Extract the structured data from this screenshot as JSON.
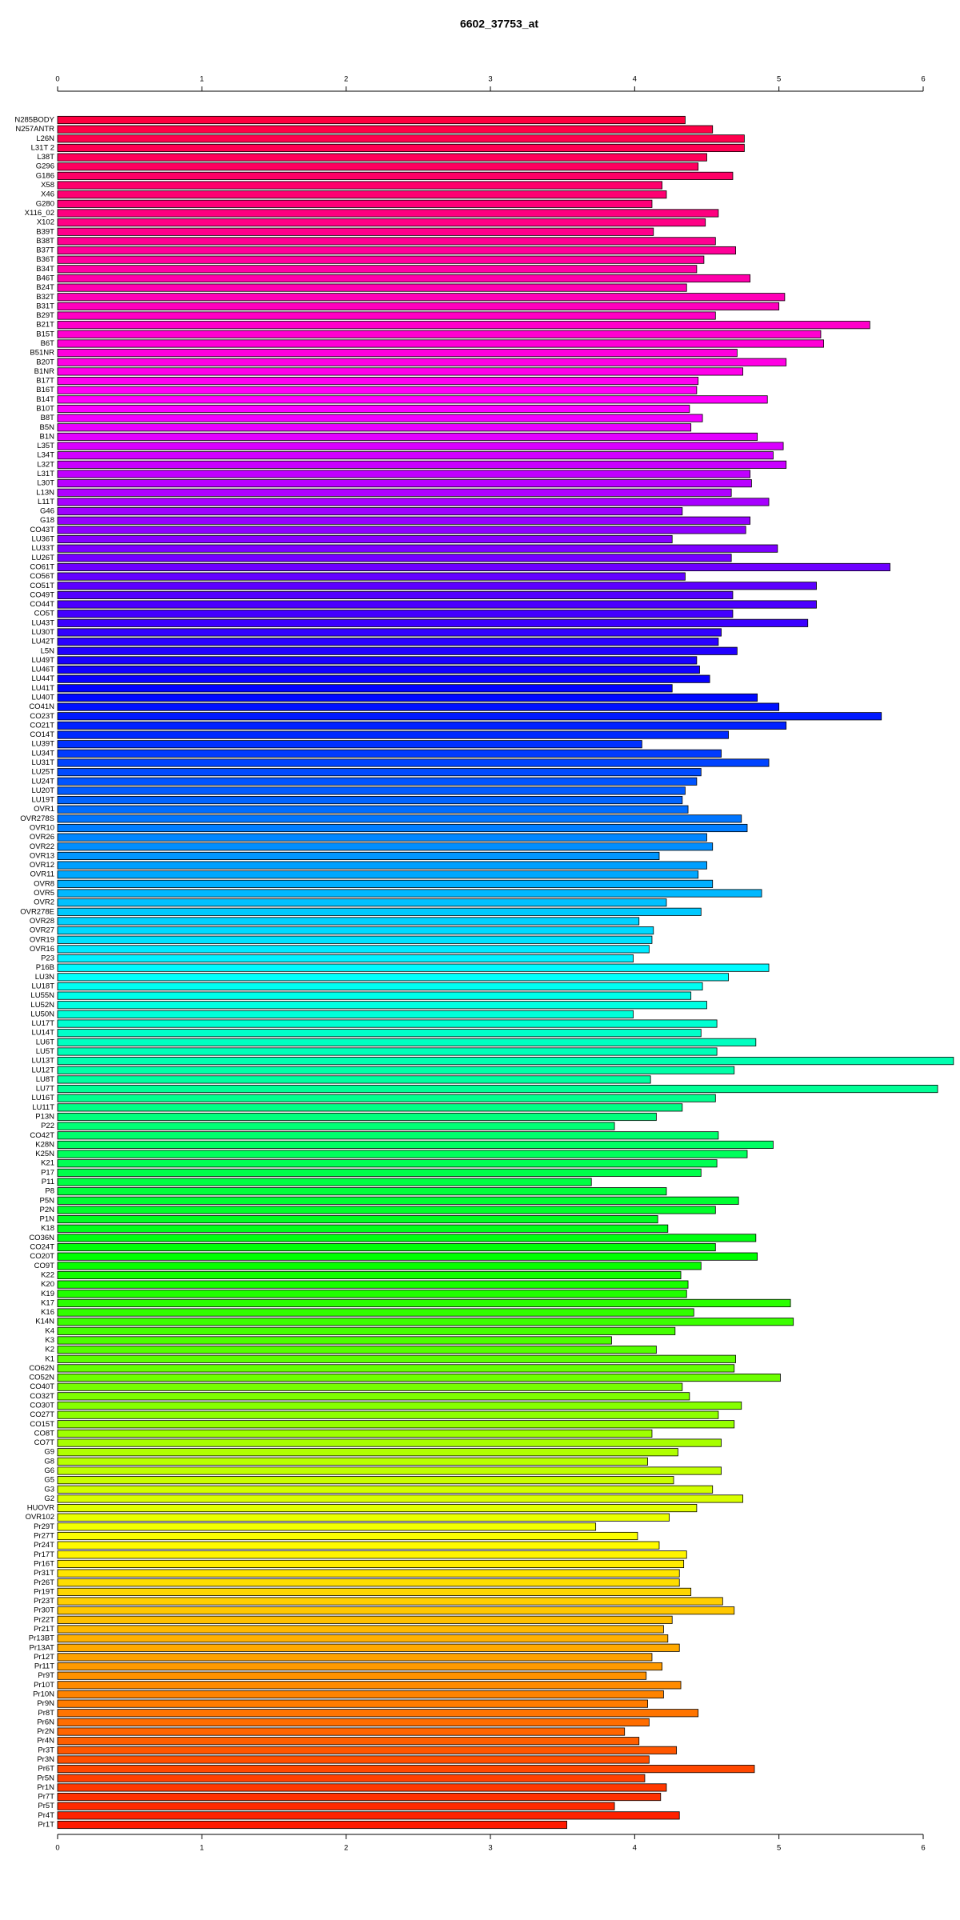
{
  "chart_data": {
    "type": "bar",
    "orientation": "horizontal",
    "title": "6602_37753_at",
    "categories": [
      "N285BODY",
      "N257ANTR",
      "L26N",
      "L31T 2",
      "L38T",
      "G296",
      "G186",
      "X58",
      "X46",
      "G280",
      "X116_02",
      "X102",
      "B39T",
      "B38T",
      "B37T",
      "B36T",
      "B34T",
      "B46T",
      "B24T",
      "B32T",
      "B31T",
      "B29T",
      "B21T",
      "B15T",
      "B6T",
      "B51NR",
      "B20T",
      "B1NR",
      "B17T",
      "B16T",
      "B14T",
      "B10T",
      "B8T",
      "B5N",
      "B1N",
      "L35T",
      "L34T",
      "L32T",
      "L31T",
      "L30T",
      "L13N",
      "L11T",
      "G46",
      "G18",
      "CO43T",
      "LU36T",
      "LU33T",
      "LU26T",
      "CO61T",
      "CO56T",
      "CO51T",
      "CO49T",
      "CO44T",
      "CO5T",
      "LU43T",
      "LU30T",
      "LU42T",
      "L5N",
      "LU49T",
      "LU46T",
      "LU44T",
      "LU41T",
      "LU40T",
      "CO41N",
      "CO23T",
      "CO21T",
      "CO14T",
      "LU39T",
      "LU34T",
      "LU31T",
      "LU25T",
      "LU24T",
      "LU20T",
      "LU19T",
      "OVR1",
      "OVR278S",
      "OVR10",
      "OVR26",
      "OVR22",
      "OVR13",
      "OVR12",
      "OVR11",
      "OVR8",
      "OVR5",
      "OVR2",
      "OVR278E",
      "OVR28",
      "OVR27",
      "OVR19",
      "OVR16",
      "P23",
      "P16B",
      "LU3N",
      "LU18T",
      "LU55N",
      "LU52N",
      "LU50N",
      "LU17T",
      "LU14T",
      "LU6T",
      "LU5T",
      "LU13T",
      "LU12T",
      "LU8T",
      "LU7T",
      "LU16T",
      "LU11T",
      "P13N",
      "P22",
      "CO42T",
      "K28N",
      "K25N",
      "K21",
      "P17",
      "P11",
      "P8",
      "P5N",
      "P2N",
      "P1N",
      "K18",
      "CO36N",
      "CO24T",
      "CO20T",
      "CO9T",
      "K22",
      "K20",
      "K19",
      "K17",
      "K16",
      "K14N",
      "K4",
      "K3",
      "K2",
      "K1",
      "CO62N",
      "CO52N",
      "CO40T",
      "CO32T",
      "CO30T",
      "CO27T",
      "CO15T",
      "CO8T",
      "CO7T",
      "G9",
      "G8",
      "G6",
      "G5",
      "G3",
      "G2",
      "HUOVR",
      "OVR102",
      "Pr29T",
      "Pr27T",
      "Pr24T",
      "Pr17T",
      "Pr16T",
      "Pr31T",
      "Pr26T",
      "Pr19T",
      "Pr23T",
      "Pr30T",
      "Pr22T",
      "Pr21T",
      "Pr13BT",
      "Pr13AT",
      "Pr12T",
      "Pr11T",
      "Pr9T",
      "Pr10T",
      "Pr10N",
      "Pr9N",
      "Pr8T",
      "Pr6N",
      "Pr2N",
      "Pr4N",
      "Pr3T",
      "Pr3N",
      "Pr6T",
      "Pr5N",
      "Pr1N",
      "Pr7T",
      "Pr5T",
      "Pr4T",
      "Pr1T"
    ],
    "values": [
      4.35,
      4.54,
      4.76,
      4.76,
      4.5,
      4.44,
      4.68,
      4.19,
      4.22,
      4.12,
      4.58,
      4.49,
      4.13,
      4.56,
      4.7,
      4.48,
      4.43,
      4.8,
      4.36,
      5.04,
      5.0,
      4.56,
      5.63,
      5.29,
      5.31,
      4.71,
      5.05,
      4.75,
      4.44,
      4.43,
      4.92,
      4.38,
      4.47,
      4.39,
      4.85,
      5.03,
      4.96,
      5.05,
      4.8,
      4.81,
      4.67,
      4.93,
      4.33,
      4.8,
      4.77,
      4.26,
      4.99,
      4.67,
      5.77,
      4.35,
      5.26,
      4.68,
      5.26,
      4.68,
      5.2,
      4.6,
      4.58,
      4.71,
      4.43,
      4.45,
      4.52,
      4.26,
      4.85,
      5.0,
      5.71,
      5.05,
      4.65,
      4.05,
      4.6,
      4.93,
      4.46,
      4.43,
      4.35,
      4.33,
      4.37,
      4.74,
      4.78,
      4.5,
      4.54,
      4.17,
      4.5,
      4.44,
      4.54,
      4.88,
      4.22,
      4.46,
      4.03,
      4.13,
      4.12,
      4.1,
      3.99,
      4.93,
      4.65,
      4.47,
      4.39,
      4.5,
      3.99,
      4.57,
      4.46,
      4.84,
      4.57,
      6.21,
      4.69,
      4.11,
      6.1,
      4.56,
      4.33,
      4.15,
      3.86,
      4.58,
      4.96,
      4.78,
      4.57,
      4.46,
      3.7,
      4.22,
      4.72,
      4.56,
      4.16,
      4.23,
      4.84,
      4.56,
      4.85,
      4.46,
      4.32,
      4.37,
      4.36,
      5.08,
      4.41,
      5.1,
      4.28,
      3.84,
      4.15,
      4.7,
      4.69,
      5.01,
      4.33,
      4.38,
      4.74,
      4.58,
      4.69,
      4.12,
      4.6,
      4.3,
      4.09,
      4.6,
      4.27,
      4.54,
      4.75,
      4.43,
      4.24,
      3.73,
      4.02,
      4.17,
      4.36,
      4.34,
      4.31,
      4.31,
      4.39,
      4.61,
      4.69,
      4.26,
      4.2,
      4.23,
      4.31,
      4.12,
      4.19,
      4.08,
      4.32,
      4.2,
      4.09,
      4.44,
      4.1,
      3.93,
      4.03,
      4.29,
      4.1,
      4.83,
      4.07,
      4.22,
      4.18,
      3.86,
      4.31,
      3.53
    ],
    "color_stops": [
      "#ff0040",
      "#ff00ff",
      "#0000ff",
      "#00ffff",
      "#00ff00",
      "#ffff00",
      "#ff1a00"
    ],
    "xlim": [
      0,
      6.25
    ],
    "xticks": [
      0,
      1,
      2,
      3,
      4,
      5,
      6
    ]
  }
}
